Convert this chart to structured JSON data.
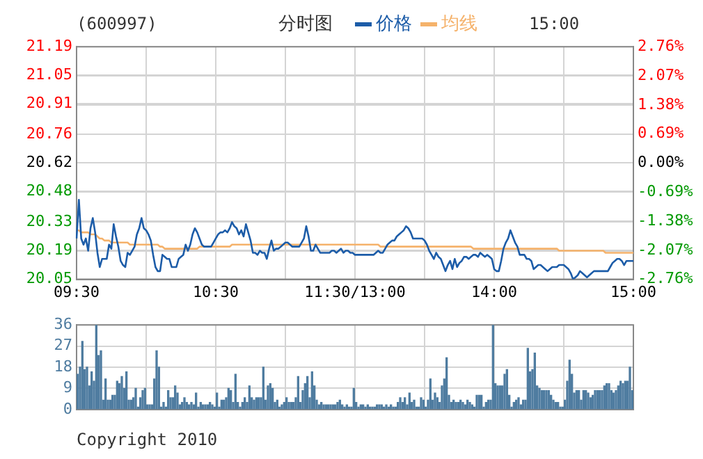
{
  "chart_data": [
    {
      "type": "line",
      "title": "(600997)",
      "subtitle": "分时图",
      "annotations": [
        "15:00"
      ],
      "legend": "top",
      "grid": true,
      "categories": [
        "09:30",
        null,
        null,
        null,
        null,
        null,
        null,
        null,
        null,
        null,
        null,
        null,
        null,
        null,
        null,
        null,
        null,
        null,
        null,
        null,
        null,
        null,
        null,
        null,
        null,
        null,
        null,
        null,
        null,
        null,
        null,
        null,
        null,
        null,
        null,
        null,
        null,
        null,
        null,
        null,
        null,
        null,
        null,
        null,
        null,
        null,
        null,
        null,
        null,
        null,
        null,
        null,
        null,
        null,
        null,
        null,
        null,
        null,
        null,
        null,
        "10:30",
        null,
        null,
        null,
        null,
        null,
        null,
        null,
        null,
        null,
        null,
        null,
        null,
        null,
        null,
        null,
        null,
        null,
        null,
        null,
        null,
        null,
        null,
        null,
        null,
        null,
        null,
        null,
        null,
        null,
        null,
        null,
        null,
        null,
        null,
        null,
        null,
        null,
        null,
        null,
        null,
        null,
        null,
        null,
        null,
        null,
        null,
        null,
        null,
        null,
        null,
        null,
        null,
        null,
        null,
        null,
        null,
        null,
        null,
        null,
        "11:30/13:00",
        null,
        null,
        null,
        null,
        null,
        null,
        null,
        null,
        null,
        null,
        null,
        null,
        null,
        null,
        null,
        null,
        null,
        null,
        null,
        null,
        null,
        null,
        null,
        null,
        null,
        null,
        null,
        null,
        null,
        null,
        null,
        null,
        null,
        null,
        null,
        null,
        null,
        null,
        null,
        null,
        null,
        null,
        null,
        null,
        null,
        null,
        null,
        null,
        null,
        null,
        null,
        null,
        null,
        null,
        null,
        null,
        null,
        null,
        null,
        "14:00",
        null,
        null,
        null,
        null,
        null,
        null,
        null,
        null,
        null,
        null,
        null,
        null,
        null,
        null,
        null,
        null,
        null,
        null,
        null,
        null,
        null,
        null,
        null,
        null,
        null,
        null,
        null,
        null,
        null,
        null,
        null,
        null,
        null,
        null,
        null,
        null,
        null,
        null,
        null,
        null,
        null,
        null,
        null,
        null,
        null,
        null,
        null,
        null,
        null,
        null,
        null,
        null,
        null,
        null,
        null,
        null,
        null,
        null,
        null,
        "15:00"
      ],
      "ylim": [
        20.05,
        21.19
      ],
      "yticks": [
        20.05,
        20.19,
        20.33,
        20.48,
        20.62,
        20.76,
        20.91,
        21.05,
        21.19
      ],
      "y2lim": [
        -2.76,
        2.76
      ],
      "y2ticks": [
        {
          "value": -2.76,
          "label": "-2.76%"
        },
        {
          "value": -2.07,
          "label": "-2.07%"
        },
        {
          "value": -1.38,
          "label": "-1.38%"
        },
        {
          "value": -0.69,
          "label": "-0.69%"
        },
        {
          "value": 0,
          "label": "0.00%"
        },
        {
          "value": 0.69,
          "label": "0.69%"
        },
        {
          "value": 1.38,
          "label": "1.38%"
        },
        {
          "value": 2.07,
          "label": "2.07%"
        },
        {
          "value": 2.76,
          "label": "2.76%"
        }
      ],
      "series": [
        {
          "name": "价格",
          "color": "#1c5ca8",
          "values": [
            20.25,
            20.44,
            20.25,
            20.22,
            20.25,
            20.19,
            20.3,
            20.35,
            20.28,
            20.18,
            20.11,
            20.15,
            20.15,
            20.15,
            20.22,
            20.2,
            20.32,
            20.26,
            20.21,
            20.14,
            20.12,
            20.11,
            20.18,
            20.17,
            20.19,
            20.21,
            20.27,
            20.3,
            20.35,
            20.3,
            20.29,
            20.27,
            20.24,
            20.17,
            20.11,
            20.09,
            20.09,
            20.17,
            20.16,
            20.15,
            20.15,
            20.11,
            20.11,
            20.11,
            20.15,
            20.16,
            20.17,
            20.22,
            20.19,
            20.22,
            20.27,
            20.3,
            20.28,
            20.25,
            20.22,
            20.21,
            20.21,
            20.21,
            20.21,
            20.23,
            20.25,
            20.27,
            20.28,
            20.28,
            20.29,
            20.28,
            20.3,
            20.33,
            20.31,
            20.3,
            20.27,
            20.29,
            20.26,
            20.32,
            20.28,
            20.24,
            20.18,
            20.18,
            20.17,
            20.19,
            20.18,
            20.18,
            20.15,
            20.2,
            20.24,
            20.19,
            20.2,
            20.2,
            20.21,
            20.22,
            20.23,
            20.23,
            20.22,
            20.21,
            20.21,
            20.21,
            20.21,
            20.23,
            20.25,
            20.31,
            20.26,
            20.19,
            20.19,
            20.22,
            20.2,
            20.18,
            20.18,
            20.18,
            20.18,
            20.18,
            20.19,
            20.19,
            20.18,
            20.19,
            20.2,
            20.18,
            20.19,
            20.19,
            20.18,
            20.18,
            20.17,
            20.17,
            20.17,
            20.17,
            20.17,
            20.17,
            20.17,
            20.17,
            20.17,
            20.18,
            20.19,
            20.18,
            20.18,
            20.2,
            20.22,
            20.23,
            20.24,
            20.24,
            20.26,
            20.27,
            20.28,
            20.29,
            20.31,
            20.3,
            20.28,
            20.25,
            20.25,
            20.25,
            20.25,
            20.25,
            20.24,
            20.22,
            20.19,
            20.17,
            20.15,
            20.18,
            20.16,
            20.15,
            20.12,
            20.09,
            20.12,
            20.14,
            20.1,
            20.15,
            20.11,
            20.13,
            20.14,
            20.16,
            20.16,
            20.15,
            20.16,
            20.17,
            20.17,
            20.16,
            20.18,
            20.17,
            20.16,
            20.17,
            20.16,
            20.15,
            20.1,
            20.09,
            20.09,
            20.14,
            20.2,
            20.23,
            20.25,
            20.29,
            20.26,
            20.23,
            20.21,
            20.17,
            20.17,
            20.17,
            20.15,
            20.15,
            20.14,
            20.1,
            20.11,
            20.12,
            20.12,
            20.11,
            20.1,
            20.09,
            20.1,
            20.11,
            20.11,
            20.11,
            20.12,
            20.12,
            20.12,
            20.11,
            20.1,
            20.08,
            20.05,
            20.06,
            20.07,
            20.09,
            20.08,
            20.07,
            20.06,
            20.07,
            20.08,
            20.09,
            20.09,
            20.09,
            20.09,
            20.09,
            20.09,
            20.09,
            20.11,
            20.13,
            20.14,
            20.15,
            20.15,
            20.14,
            20.12,
            20.14,
            20.14,
            20.14,
            20.14
          ]
        },
        {
          "name": "均线",
          "color": "#f5b26b",
          "values": [
            20.29,
            20.29,
            20.28,
            20.28,
            20.28,
            20.28,
            20.27,
            20.27,
            20.27,
            20.26,
            20.25,
            20.25,
            20.24,
            20.24,
            20.24,
            20.23,
            20.23,
            20.23,
            20.23,
            20.23,
            20.23,
            20.23,
            20.23,
            20.22,
            20.22,
            20.22,
            20.22,
            20.22,
            20.22,
            20.22,
            20.22,
            20.22,
            20.22,
            20.22,
            20.22,
            20.22,
            20.21,
            20.21,
            20.2,
            20.2,
            20.2,
            20.2,
            20.2,
            20.2,
            20.2,
            20.2,
            20.2,
            20.2,
            20.2,
            20.2,
            20.2,
            20.2,
            20.2,
            20.21,
            20.21,
            20.21,
            20.21,
            20.21,
            20.21,
            20.21,
            20.21,
            20.21,
            20.21,
            20.21,
            20.21,
            20.21,
            20.21,
            20.22,
            20.22,
            20.22,
            20.22,
            20.22,
            20.22,
            20.22,
            20.22,
            20.22,
            20.22,
            20.22,
            20.22,
            20.22,
            20.22,
            20.22,
            20.22,
            20.22,
            20.22,
            20.22,
            20.22,
            20.22,
            20.22,
            20.22,
            20.22,
            20.22,
            20.22,
            20.22,
            20.22,
            20.22,
            20.22,
            20.22,
            20.22,
            20.22,
            20.22,
            20.22,
            20.22,
            20.22,
            20.22,
            20.22,
            20.22,
            20.22,
            20.22,
            20.22,
            20.22,
            20.22,
            20.22,
            20.22,
            20.22,
            20.22,
            20.22,
            20.22,
            20.22,
            20.22,
            20.22,
            20.22,
            20.22,
            20.22,
            20.22,
            20.22,
            20.22,
            20.22,
            20.22,
            20.22,
            20.22,
            20.21,
            20.21,
            20.21,
            20.21,
            20.21,
            20.21,
            20.21,
            20.21,
            20.21,
            20.21,
            20.21,
            20.21,
            20.21,
            20.21,
            20.21,
            20.21,
            20.21,
            20.21,
            20.21,
            20.21,
            20.21,
            20.21,
            20.21,
            20.21,
            20.21,
            20.21,
            20.21,
            20.21,
            20.21,
            20.21,
            20.21,
            20.21,
            20.21,
            20.21,
            20.21,
            20.21,
            20.21,
            20.21,
            20.21,
            20.21,
            20.2,
            20.2,
            20.2,
            20.2,
            20.2,
            20.2,
            20.2,
            20.2,
            20.2,
            20.2,
            20.2,
            20.2,
            20.2,
            20.2,
            20.2,
            20.2,
            20.2,
            20.2,
            20.2,
            20.2,
            20.2,
            20.2,
            20.2,
            20.2,
            20.2,
            20.2,
            20.2,
            20.2,
            20.2,
            20.2,
            20.2,
            20.2,
            20.2,
            20.2,
            20.2,
            20.2,
            20.2,
            20.19,
            20.19,
            20.19,
            20.19,
            20.19,
            20.19,
            20.19,
            20.19,
            20.19,
            20.19,
            20.19,
            20.19,
            20.19,
            20.19,
            20.19,
            20.19,
            20.19,
            20.19,
            20.19,
            20.19,
            20.18,
            20.18,
            20.18,
            20.18,
            20.18,
            20.18,
            20.18,
            20.18,
            20.18,
            20.18,
            20.18,
            20.18,
            20.18
          ]
        }
      ]
    },
    {
      "type": "bar",
      "annotations": [
        "Copyright 2010"
      ],
      "grid": true,
      "tick_labels": "y",
      "ylim": [
        0,
        36
      ],
      "yticks": [
        0,
        9,
        18,
        27,
        36
      ],
      "categories": [
        null,
        null,
        null,
        null,
        null,
        null,
        null,
        null,
        null,
        null,
        null,
        null,
        null,
        null,
        null,
        null,
        null,
        null,
        null,
        null,
        null,
        null,
        null,
        null,
        null,
        null,
        null,
        null,
        null,
        null,
        null,
        null,
        null,
        null,
        null,
        null,
        null,
        null,
        null,
        null,
        null,
        null,
        null,
        null,
        null,
        null,
        null,
        null,
        null,
        null,
        null,
        null,
        null,
        null,
        null,
        null,
        null,
        null,
        null,
        null,
        null,
        null,
        null,
        null,
        null,
        null,
        null,
        null,
        null,
        null,
        null,
        null,
        null,
        null,
        null,
        null,
        null,
        null,
        null,
        null,
        null,
        null,
        null,
        null,
        null,
        null,
        null,
        null,
        null,
        null,
        null,
        null,
        null,
        null,
        null,
        null,
        null,
        null,
        null,
        null,
        null,
        null,
        null,
        null,
        null,
        null,
        null,
        null,
        null,
        null,
        null,
        null,
        null,
        null,
        null,
        null,
        null,
        null,
        null,
        null,
        null,
        null,
        null,
        null,
        null,
        null,
        null,
        null,
        null,
        null,
        null,
        null,
        null,
        null,
        null,
        null,
        null,
        null,
        null,
        null,
        null,
        null,
        null,
        null,
        null,
        null,
        null,
        null,
        null,
        null,
        null,
        null,
        null,
        null,
        null,
        null,
        null,
        null,
        null,
        null,
        null,
        null,
        null,
        null,
        null,
        null,
        null,
        null,
        null,
        null,
        null,
        null,
        null,
        null,
        null,
        null,
        null,
        null,
        null,
        null,
        null,
        null,
        null,
        null,
        null,
        null,
        null,
        null,
        null,
        null,
        null,
        null,
        null,
        null,
        null,
        null,
        null,
        null,
        null,
        null,
        null,
        null,
        null,
        null,
        null,
        null,
        null,
        null,
        null,
        null,
        null,
        null,
        null,
        null,
        null,
        null,
        null,
        null,
        null,
        null,
        null,
        null,
        null,
        null,
        null,
        null,
        null,
        null,
        null,
        null,
        null,
        null,
        null,
        null,
        null,
        null,
        null,
        null,
        null,
        null
      ],
      "series": [
        {
          "color": "#4f7ca0",
          "values": [
            15,
            18,
            29,
            17,
            18,
            10,
            16,
            12,
            36,
            23,
            25,
            4,
            13,
            4,
            4,
            6,
            6,
            12,
            11,
            14,
            9,
            16,
            4,
            4,
            5,
            9,
            1,
            5,
            8,
            9,
            2,
            2,
            2,
            13,
            25,
            18,
            1,
            3,
            1,
            8,
            5,
            5,
            10,
            7,
            2,
            3,
            5,
            3,
            2,
            3,
            2,
            7,
            1,
            3,
            2,
            2,
            2,
            3,
            2,
            1,
            7,
            1,
            4,
            4,
            5,
            9,
            8,
            3,
            15,
            3,
            1,
            3,
            5,
            3,
            10,
            5,
            4,
            5,
            5,
            5,
            18,
            4,
            10,
            11,
            9,
            3,
            4,
            1,
            2,
            3,
            5,
            3,
            3,
            3,
            5,
            14,
            3,
            8,
            11,
            14,
            5,
            16,
            10,
            4,
            2,
            3,
            2,
            2,
            2,
            2,
            2,
            2,
            3,
            4,
            2,
            1,
            2,
            1,
            1,
            9,
            3,
            1,
            2,
            2,
            1,
            2,
            1,
            1,
            1,
            2,
            2,
            2,
            1,
            2,
            1,
            2,
            1,
            1,
            3,
            5,
            3,
            5,
            2,
            7,
            3,
            4,
            1,
            1,
            5,
            4,
            1,
            4,
            13,
            4,
            7,
            5,
            3,
            10,
            13,
            22,
            6,
            3,
            4,
            3,
            3,
            4,
            3,
            2,
            4,
            3,
            2,
            1,
            6,
            6,
            6,
            1,
            3,
            4,
            4,
            36,
            11,
            10,
            10,
            10,
            15,
            17,
            6,
            1,
            3,
            4,
            5,
            2,
            4,
            4,
            26,
            16,
            17,
            24,
            10,
            9,
            8,
            8,
            8,
            8,
            6,
            4,
            3,
            3,
            1,
            1,
            4,
            12,
            21,
            15,
            7,
            8,
            8,
            4,
            8,
            8,
            7,
            5,
            6,
            8,
            8,
            8,
            8,
            10,
            11,
            11,
            8,
            7,
            8,
            10,
            12,
            11,
            12,
            12,
            18,
            8
          ]
        }
      ]
    }
  ]
}
